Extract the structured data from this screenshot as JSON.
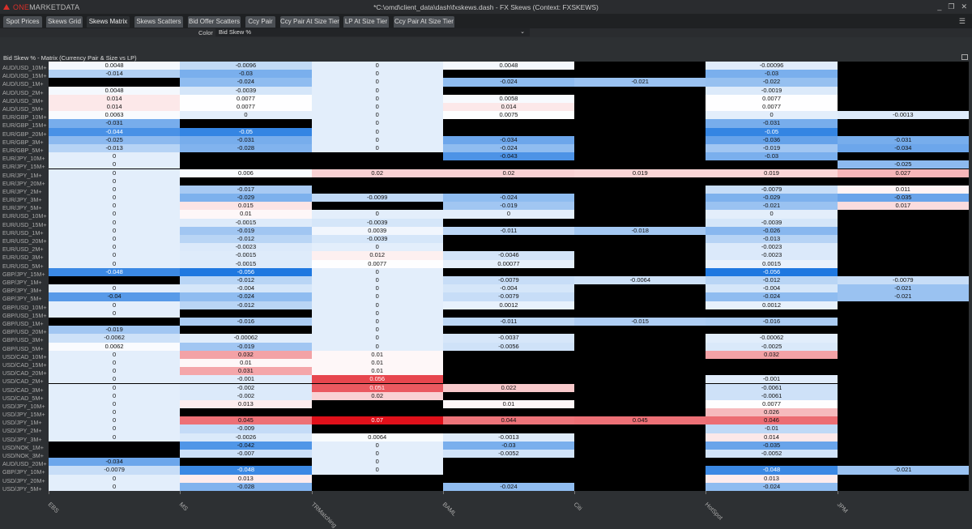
{
  "app": {
    "logo": "ONEMARKETDATA",
    "logo_one": "ONE",
    "logo_rest": "MARKETDATA",
    "title": "*C:\\omd\\client_data\\dash\\fxskews.dash - FX Skews (Context: FXSKEWS)"
  },
  "tabs": [
    {
      "label": "Spot Prices"
    },
    {
      "label": "Skews Grid"
    },
    {
      "label": "Skews Matrix",
      "active": true
    },
    {
      "label": "Skews Scatters"
    },
    {
      "label": "Bid Offer Scatters"
    },
    {
      "label": "Ccy Pair"
    },
    {
      "label": "Ccy Pair At Size Tier"
    },
    {
      "label": "LP At Size Tier"
    },
    {
      "label": "Ccy Pair At Size Tier"
    }
  ],
  "controls": {
    "color_label": "Color",
    "color_value": "Bid Skew %"
  },
  "chart_data": {
    "type": "heatmap",
    "title": "Bid Skew % - Matrix (Currency Pair & Size vs LP)",
    "colors": {
      "negative": "#1f78e0",
      "neutral": "#ffffff",
      "positive": "#e0101a",
      "missing": "#000000"
    },
    "columns": [
      "EBS",
      "MS",
      "TRMatching",
      "BAML",
      "Citi",
      "HotSpot",
      "JPM"
    ],
    "rows": [
      "AUD/USD_10M+",
      "AUD/USD_15M+",
      "AUD/USD_1M+",
      "AUD/USD_2M+",
      "AUD/USD_3M+",
      "AUD/USD_5M+",
      "EUR/GBP_10M+",
      "EUR/GBP_15M+",
      "EUR/GBP_20M+",
      "EUR/GBP_3M+",
      "EUR/GBP_5M+",
      "EUR/JPY_10M+",
      "EUR/JPY_15M+",
      "EUR/JPY_1M+",
      "EUR/JPY_20M+",
      "EUR/JPY_2M+",
      "EUR/JPY_3M+",
      "EUR/JPY_5M+",
      "EUR/USD_10M+",
      "EUR/USD_15M+",
      "EUR/USD_1M+",
      "EUR/USD_20M+",
      "EUR/USD_2M+",
      "EUR/USD_3M+",
      "EUR/USD_5M+",
      "GBP/JPY_15M+",
      "GBP/JPY_1M+",
      "GBP/JPY_3M+",
      "GBP/JPY_5M+",
      "GBP/USD_10M+",
      "GBP/USD_15M+",
      "GBP/USD_1M+",
      "GBP/USD_20M+",
      "GBP/USD_3M+",
      "GBP/USD_5M+",
      "USD/CAD_10M+",
      "USD/CAD_15M+",
      "USD/CAD_20M+",
      "USD/CAD_2M+",
      "USD/CAD_3M+",
      "USD/CAD_5M+",
      "USD/JPY_10M+",
      "USD/JPY_15M+",
      "USD/JPY_1M+",
      "USD/JPY_2M+",
      "USD/JPY_3M+",
      "USD/NOK_1M+",
      "USD/NOK_3M+",
      "AUD/USD_20M+",
      "GBP/JPY_10M+",
      "USD/JPY_20M+",
      "USD/JPY_5M+"
    ],
    "values": [
      [
        "0.0048",
        "-0.0096",
        "0",
        "0.0048",
        null,
        "-0.00096",
        null
      ],
      [
        "-0.014",
        "-0.03",
        "0",
        null,
        null,
        "-0.03",
        null
      ],
      [
        null,
        "-0.024",
        "0",
        "-0.024",
        "-0.021",
        "-0.022",
        null
      ],
      [
        "0.0048",
        "-0.0039",
        "0",
        null,
        null,
        "-0.0019",
        null
      ],
      [
        "0.014",
        "0.0077",
        "0",
        "0.0058",
        null,
        "0.0077",
        null
      ],
      [
        "0.014",
        "0.0077",
        "0",
        "0.014",
        null,
        "0.0077",
        null
      ],
      [
        "0.0063",
        "0",
        "0",
        "0.0075",
        null,
        "0",
        "-0.0013"
      ],
      [
        "-0.031",
        null,
        "0",
        null,
        null,
        "-0.031",
        null
      ],
      [
        "-0.044",
        "-0.05",
        "0",
        null,
        null,
        "-0.05",
        null
      ],
      [
        "-0.025",
        "-0.031",
        "0",
        "-0.034",
        null,
        "-0.036",
        "-0.031"
      ],
      [
        "-0.013",
        "-0.028",
        "0",
        "-0.024",
        null,
        "-0.019",
        "-0.034"
      ],
      [
        "0",
        null,
        null,
        "-0.043",
        null,
        "-0.03",
        null
      ],
      [
        "0",
        null,
        null,
        null,
        null,
        null,
        "-0.025"
      ],
      [
        "0",
        "0.006",
        "0.02",
        "0.02",
        "0.019",
        "0.019",
        "0.027"
      ],
      [
        "0",
        null,
        null,
        null,
        null,
        null,
        null
      ],
      [
        "0",
        "-0.017",
        null,
        null,
        null,
        "-0.0079",
        "0.011"
      ],
      [
        "0",
        "-0.029",
        "-0.0099",
        "-0.024",
        null,
        "-0.029",
        "-0.035"
      ],
      [
        "0",
        "0.015",
        null,
        "-0.019",
        null,
        "-0.021",
        "0.017"
      ],
      [
        "0",
        "0.01",
        "0",
        "0",
        null,
        "0",
        null
      ],
      [
        "0",
        "-0.0015",
        "-0.0039",
        null,
        null,
        "-0.0039",
        null
      ],
      [
        "0",
        "-0.019",
        "0.0039",
        "-0.011",
        "-0.018",
        "-0.026",
        null
      ],
      [
        "0",
        "-0.012",
        "-0.0039",
        null,
        null,
        "-0.013",
        null
      ],
      [
        "0",
        "-0.0023",
        "0",
        null,
        null,
        "-0.0023",
        null
      ],
      [
        "0",
        "-0.0015",
        "0.012",
        "-0.0046",
        null,
        "-0.0023",
        null
      ],
      [
        "0",
        "-0.0015",
        "0.0077",
        "0.00077",
        null,
        "0.0015",
        null
      ],
      [
        "-0.048",
        "-0.056",
        "0",
        null,
        null,
        "-0.056",
        null
      ],
      [
        null,
        "-0.012",
        "0",
        "-0.0079",
        "-0.0064",
        "-0.012",
        "-0.0079"
      ],
      [
        "0",
        "-0.004",
        "0",
        "-0.004",
        null,
        "-0.004",
        "-0.021"
      ],
      [
        "-0.04",
        "-0.024",
        "0",
        "-0.0079",
        null,
        "-0.024",
        "-0.021"
      ],
      [
        "0",
        "-0.012",
        "0",
        "0.0012",
        null,
        "0.0012",
        null
      ],
      [
        "0",
        null,
        "0",
        null,
        null,
        null,
        null
      ],
      [
        null,
        "-0.016",
        "0",
        "-0.011",
        "-0.015",
        "-0.016",
        null
      ],
      [
        "-0.019",
        null,
        "0",
        null,
        null,
        null,
        null
      ],
      [
        "-0.0062",
        "-0.00062",
        "0",
        "-0.0037",
        null,
        "-0.00062",
        null
      ],
      [
        "0.0062",
        "-0.019",
        "0",
        "-0.0056",
        null,
        "-0.0025",
        null
      ],
      [
        "0",
        "0.032",
        "0.01",
        null,
        null,
        "0.032",
        null
      ],
      [
        "0",
        "0.01",
        "0.01",
        null,
        null,
        null,
        null
      ],
      [
        "0",
        "0.031",
        "0.01",
        null,
        null,
        null,
        null
      ],
      [
        "0",
        "-0.001",
        "0.056",
        null,
        null,
        "-0.001",
        null
      ],
      [
        "0",
        "-0.002",
        "0.051",
        "0.022",
        null,
        "-0.0061",
        null
      ],
      [
        "0",
        "-0.002",
        "0.02",
        null,
        null,
        "-0.0061",
        null
      ],
      [
        "0",
        "0.013",
        null,
        "0.01",
        null,
        "0.0077",
        null
      ],
      [
        "0",
        null,
        null,
        null,
        null,
        "0.026",
        null
      ],
      [
        "0",
        "0.045",
        "0.07",
        "0.044",
        "0.045",
        "0.046",
        null
      ],
      [
        "0",
        "-0.009",
        null,
        null,
        null,
        "-0.01",
        null
      ],
      [
        "0",
        "-0.0026",
        "0.0064",
        "-0.0013",
        null,
        "0.014",
        null
      ],
      [
        null,
        "-0.042",
        "0",
        "-0.03",
        null,
        "-0.035",
        null
      ],
      [
        null,
        "-0.007",
        "0",
        "-0.0052",
        null,
        "-0.0052",
        null
      ],
      [
        "-0.034",
        null,
        "0",
        null,
        null,
        null,
        null
      ],
      [
        "-0.0079",
        "-0.048",
        "0",
        null,
        null,
        "-0.048",
        "-0.021"
      ],
      [
        "0",
        "0.013",
        null,
        null,
        null,
        "0.013",
        null
      ],
      [
        "0",
        "-0.028",
        null,
        "-0.024",
        null,
        "-0.024",
        null
      ]
    ]
  }
}
